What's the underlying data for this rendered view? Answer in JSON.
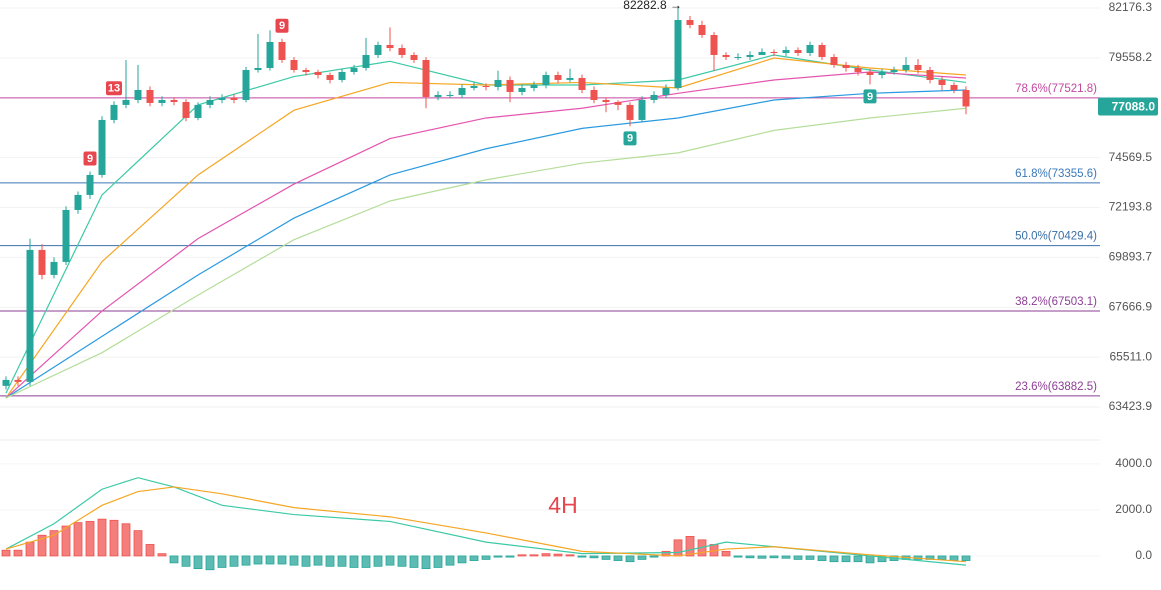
{
  "chart_data": [
    {
      "type": "candlestick",
      "log": true,
      "ylim": [
        62080,
        82604
      ],
      "yticks": [
        82176.3,
        79558.2,
        74569.5,
        72193.8,
        69893.7,
        67666.9,
        {
          "value": 65511,
          "label": "65511.0"
        },
        63423.9
      ],
      "grid": true,
      "up_color": "#26a69a",
      "down_color": "#ef5350",
      "open": [
        64300,
        64550,
        64467,
        70233,
        69102,
        69688,
        72079,
        72785,
        73736,
        76415,
        77166,
        77413,
        77917,
        77262,
        77413,
        77312,
        76514,
        77166,
        77413,
        77514,
        77413,
        78935,
        79038,
        80382,
        79449,
        78935,
        78833,
        78679,
        78425,
        78833,
        79038,
        79708,
        80226,
        80070,
        79708,
        79449,
        77564,
        77665,
        77665,
        78018,
        78120,
        78069,
        78425,
        77816,
        78018,
        78170,
        78679,
        78425,
        78527,
        77917,
        77413,
        77312,
        77166,
        76415,
        77413,
        77665,
        78018,
        81539,
        81275,
        80749,
        79708,
        79604,
        79604,
        79708,
        79863,
        79810,
        79966,
        79810,
        80226,
        79604,
        79192,
        79038,
        78833,
        78679,
        78833,
        78935,
        79192,
        78935,
        78425,
        78170,
        77917
      ],
      "high": [
        64700,
        64700,
        70750,
        70500,
        69900,
        72250,
        72950,
        73900,
        76600,
        77350,
        79449,
        79200,
        78100,
        77600,
        77550,
        77450,
        77300,
        77600,
        77700,
        77700,
        79100,
        80800,
        81000,
        80550,
        79600,
        79050,
        78950,
        78800,
        79000,
        79200,
        80600,
        80400,
        81150,
        80250,
        79850,
        79600,
        77850,
        77850,
        78200,
        78300,
        78250,
        78900,
        78600,
        78200,
        78350,
        78850,
        78850,
        79000,
        78700,
        78100,
        77550,
        77400,
        77300,
        77600,
        77850,
        78200,
        82282.8,
        81750,
        81500,
        80900,
        79850,
        79800,
        79900,
        80050,
        80000,
        80150,
        80100,
        80400,
        80350,
        79750,
        79350,
        79200,
        79000,
        79000,
        79100,
        79600,
        79500,
        79100,
        78600,
        78300,
        78100
      ],
      "low": [
        64150,
        64300,
        64300,
        68900,
        68950,
        69550,
        71900,
        72600,
        73600,
        76250,
        77000,
        77250,
        77100,
        77100,
        77150,
        76350,
        76400,
        77000,
        77250,
        77250,
        77300,
        78800,
        78900,
        79300,
        78800,
        78650,
        78500,
        78250,
        78300,
        78700,
        78900,
        79550,
        79900,
        79550,
        79300,
        77000,
        77400,
        77500,
        77500,
        77900,
        77900,
        77900,
        77300,
        77650,
        77850,
        78000,
        78250,
        78300,
        77750,
        77250,
        76800,
        76900,
        76100,
        76300,
        77250,
        77500,
        77900,
        81100,
        80600,
        78900,
        79450,
        79450,
        79450,
        79700,
        79650,
        79650,
        79650,
        79650,
        79450,
        79050,
        78850,
        78650,
        78200,
        78500,
        78700,
        78800,
        78750,
        78250,
        77900,
        77750,
        76700
      ],
      "close": [
        64550,
        64467,
        70233,
        69102,
        69688,
        72079,
        72785,
        73736,
        76415,
        77166,
        77413,
        77917,
        77262,
        77413,
        77312,
        76514,
        77166,
        77413,
        77514,
        77413,
        78935,
        79038,
        80382,
        79449,
        78935,
        78833,
        78679,
        78425,
        78833,
        79038,
        79708,
        80226,
        80070,
        79708,
        79449,
        77564,
        77665,
        77665,
        78018,
        78120,
        78069,
        78425,
        77816,
        78018,
        78170,
        78679,
        78425,
        78527,
        77917,
        77413,
        77312,
        77166,
        76415,
        77413,
        77665,
        78018,
        81539,
        81275,
        80749,
        79708,
        79604,
        79604,
        79708,
        79863,
        79810,
        79966,
        79810,
        80226,
        79604,
        79192,
        79038,
        78833,
        78679,
        78833,
        78935,
        79192,
        78935,
        78425,
        78170,
        77917,
        77088
      ],
      "ma_index": [
        0,
        8,
        16,
        24,
        32,
        40,
        48,
        56,
        64,
        72,
        80
      ],
      "series": [
        {
          "color": "#3cc9a5",
          "values": [
            64000,
            72785,
            77166,
            78600,
            79380,
            78170,
            78170,
            78425,
            79708,
            78935,
            78300
          ]
        },
        {
          "color": "#f5a623",
          "values": [
            63800,
            69700,
            73736,
            76900,
            78300,
            78170,
            78300,
            78018,
            79550,
            79038,
            78679
          ]
        },
        {
          "color": "#e455b0",
          "values": [
            63800,
            67500,
            70750,
            73300,
            75500,
            76514,
            77000,
            77750,
            78425,
            78833,
            78527
          ]
        },
        {
          "color": "#2a9ae0",
          "values": [
            63800,
            66400,
            69100,
            71700,
            73736,
            75000,
            76000,
            76514,
            77413,
            77750,
            77917
          ]
        },
        {
          "color": "#b5dd9a",
          "values": [
            63800,
            65700,
            68200,
            70700,
            72500,
            73500,
            74300,
            74800,
            75900,
            76514,
            77000
          ]
        }
      ],
      "fib_levels": [
        {
          "value": 77521.8,
          "label": "78.6%(77521.8)",
          "color": "#c2489f"
        },
        {
          "value": 73355.6,
          "label": "61.8%(73355.6)",
          "color": "#3a78b8"
        },
        {
          "value": 70429.4,
          "label": "50.0%(70429.4)",
          "color": "#3a6fa8"
        },
        {
          "value": 67503.1,
          "label": "38.2%(67503.1)",
          "color": "#8e3e96"
        },
        {
          "value": 63882.5,
          "label": "23.6%(63882.5)",
          "color": "#8e3e96"
        }
      ],
      "last_price": {
        "value": 77088,
        "label": "77088.0"
      },
      "high_label": {
        "value": 82282.8,
        "label": "82282.8 →"
      },
      "td_labels": [
        {
          "text": "9",
          "candle": 7,
          "side": "high",
          "color": "#e8464f"
        },
        {
          "text": "13",
          "candle": 9,
          "side": "high",
          "color": "#e8464f"
        },
        {
          "text": "9",
          "candle": 23,
          "side": "high",
          "color": "#e8464f"
        },
        {
          "text": "9",
          "candle": 52,
          "side": "low",
          "color": "#26a69a"
        },
        {
          "text": "9",
          "candle": 72,
          "side": "low",
          "color": "#26a69a"
        }
      ]
    },
    {
      "type": "macd",
      "annotation": "4H",
      "ylim": [
        -1480,
        5040
      ],
      "yticks": [
        {
          "value": 4000,
          "label": "4000.0"
        },
        {
          "value": 2000,
          "label": "2000.0"
        },
        {
          "value": 0,
          "label": "0.0"
        }
      ],
      "pos_color": "#ef5350",
      "neg_color": "#26a69a",
      "histogram": [
        250,
        250,
        600,
        900,
        1100,
        1300,
        1450,
        1500,
        1600,
        1550,
        1400,
        1100,
        500,
        100,
        -300,
        -450,
        -550,
        -600,
        -500,
        -450,
        -400,
        -350,
        -350,
        -350,
        -400,
        -450,
        -400,
        -450,
        -450,
        -500,
        -500,
        -450,
        -400,
        -450,
        -500,
        -550,
        -500,
        -400,
        -300,
        -200,
        -150,
        -50,
        -50,
        50,
        50,
        100,
        80,
        50,
        -50,
        -80,
        -150,
        -200,
        -250,
        -150,
        -50,
        200,
        700,
        850,
        700,
        500,
        200,
        -50,
        -80,
        -100,
        -80,
        -100,
        -150,
        -150,
        -200,
        -250,
        -250,
        -250,
        -300,
        -250,
        -200,
        -150,
        -150,
        -150,
        -150,
        -200,
        -200
      ],
      "line_index": [
        0,
        4,
        8,
        11,
        14,
        18,
        24,
        32,
        40,
        48,
        56,
        60,
        64,
        72,
        80
      ],
      "series": [
        {
          "color": "#3cc9a5",
          "values": [
            300,
            1400,
            2900,
            3400,
            3000,
            2200,
            1800,
            1500,
            600,
            100,
            150,
            600,
            400,
            0,
            -400
          ]
        },
        {
          "color": "#f5a623",
          "values": [
            300,
            900,
            2200,
            2800,
            3000,
            2700,
            2100,
            1700,
            1000,
            200,
            0,
            300,
            400,
            50,
            -250
          ]
        }
      ]
    }
  ]
}
